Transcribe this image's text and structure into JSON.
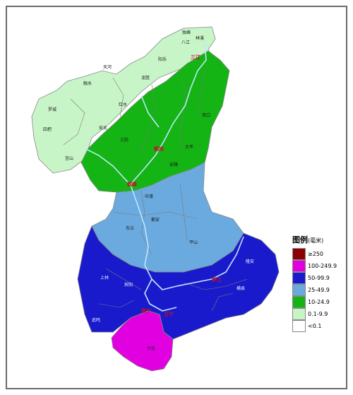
{
  "legend": {
    "title": "图例",
    "unit": "(毫米)",
    "items": [
      {
        "label": "≥250",
        "color": "#8b0000"
      },
      {
        "label": "100-249.9",
        "color": "#e000e0"
      },
      {
        "label": "50-99.9",
        "color": "#1a1acd"
      },
      {
        "label": "25-49.9",
        "color": "#6aaadf"
      },
      {
        "label": "10-24.9",
        "color": "#14b414"
      },
      {
        "label": "0.1-9.9",
        "color": "#c8f5c8"
      },
      {
        "label": "<0.1",
        "color": "#ffffff"
      }
    ]
  },
  "regions": {
    "light_green": "#c8f5c8",
    "green": "#14b414",
    "light_blue": "#6aaadf",
    "blue": "#1a1acd",
    "magenta": "#e000e0",
    "river": "#bfe6ff",
    "border": "#888888"
  },
  "cities": [
    "三江",
    "鹤岗",
    "鹤峰",
    "黔江",
    "南宁",
    "万宁"
  ],
  "place_labels": [
    "独峰",
    "林溪",
    "八江",
    "阳乐",
    "天河",
    "融水",
    "龙胜",
    "红水",
    "安太",
    "罗城",
    "四把",
    "宜山",
    "三防",
    "大年",
    "良口",
    "安陲",
    "中渡",
    "都安",
    "平山",
    "东兰",
    "上林",
    "宾阳",
    "横县",
    "武鸣",
    "隆安",
    "大化"
  ]
}
